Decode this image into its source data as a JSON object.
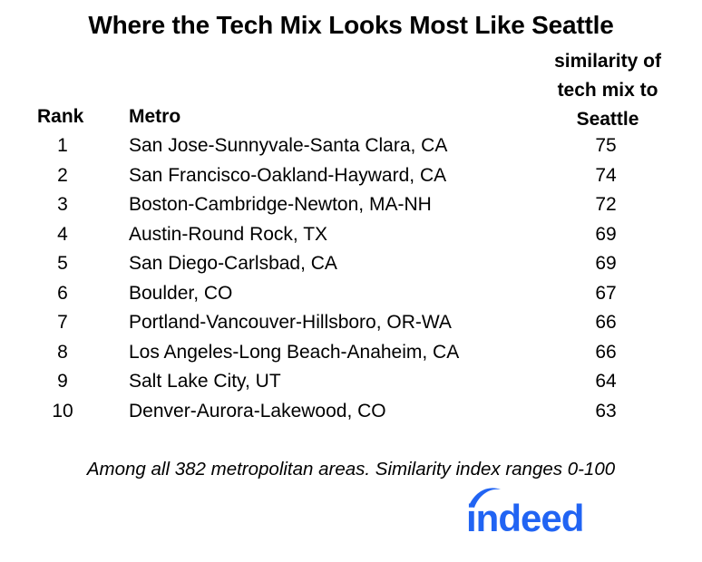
{
  "colors": {
    "text": "#000000",
    "background": "#ffffff",
    "brand": "#2164f3"
  },
  "title": "Where the Tech Mix Looks Most Like Seattle",
  "headers": {
    "rank": "Rank",
    "metro": "Metro",
    "value_lines": [
      "similarity of",
      "tech mix to",
      "Seattle"
    ]
  },
  "footnote": "Among all 382 metropolitan areas. Similarity index ranges 0-100",
  "logo_text": "indeed",
  "chart_data": {
    "type": "table",
    "title": "Where the Tech Mix Looks Most Like Seattle",
    "columns": [
      "Rank",
      "Metro",
      "similarity of tech mix to Seattle"
    ],
    "rows": [
      {
        "rank": "1",
        "metro": "San Jose-Sunnyvale-Santa Clara, CA",
        "value": 75
      },
      {
        "rank": "2",
        "metro": "San Francisco-Oakland-Hayward, CA",
        "value": 74
      },
      {
        "rank": "3",
        "metro": "Boston-Cambridge-Newton, MA-NH",
        "value": 72
      },
      {
        "rank": "4",
        "metro": "Austin-Round Rock, TX",
        "value": 69
      },
      {
        "rank": "5",
        "metro": "San Diego-Carlsbad, CA",
        "value": 69
      },
      {
        "rank": "6",
        "metro": "Boulder, CO",
        "value": 67
      },
      {
        "rank": "7",
        "metro": "Portland-Vancouver-Hillsboro, OR-WA",
        "value": 66
      },
      {
        "rank": "8",
        "metro": "Los Angeles-Long Beach-Anaheim, CA",
        "value": 66
      },
      {
        "rank": "9",
        "metro": "Salt Lake City, UT",
        "value": 64
      },
      {
        "rank": "10",
        "metro": "Denver-Aurora-Lakewood, CO",
        "value": 63
      }
    ]
  }
}
